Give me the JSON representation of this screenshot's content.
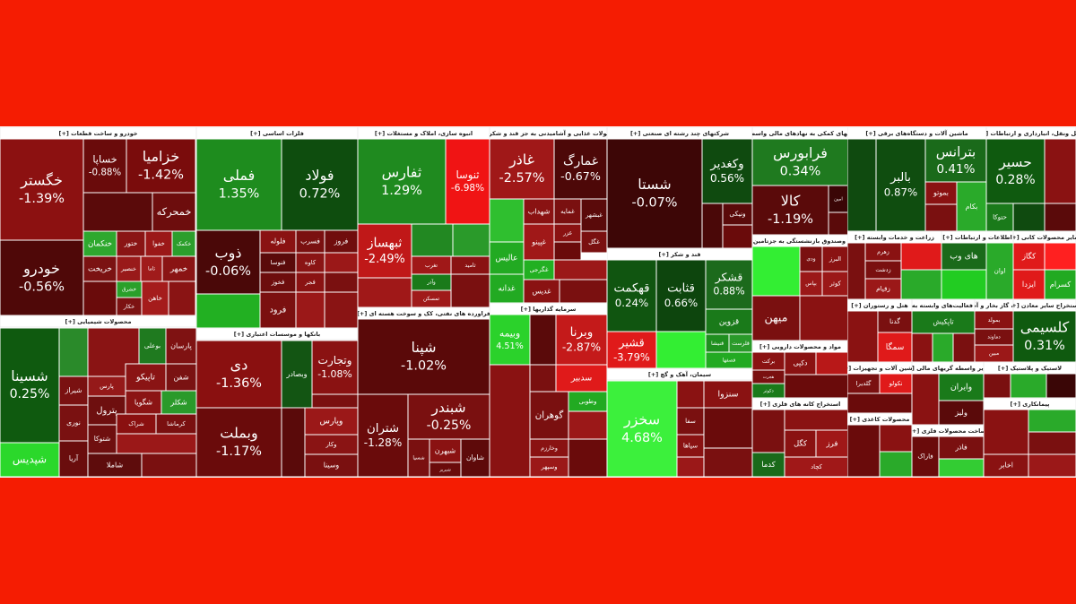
{
  "sectors": [
    {
      "title": "خودرو و ساخت قطعات [+]",
      "tiles": [
        {
          "name": "خگستر",
          "change": "-1.39%",
          "color": "#8c1111"
        },
        {
          "name": "خودرو",
          "change": "-0.56%",
          "color": "#4f0808"
        },
        {
          "name": "خساپا",
          "change": "-0.88%",
          "color": "#6a0b0b"
        },
        {
          "name": "خزامیا",
          "change": "-1.42%",
          "color": "#7a0c0c"
        },
        {
          "color": "#5a0a0a"
        },
        {
          "name": "خمحرکه",
          "color": "#6d0d0d"
        },
        {
          "name": "خنکمان",
          "color": "#2ea82e"
        },
        {
          "name": "ختور",
          "color": "#8a1515"
        },
        {
          "name": "خفوا",
          "color": "#9b1818"
        },
        {
          "name": "خکمک",
          "color": "#2c9e2c"
        },
        {
          "name": "خریخت",
          "color": "#7b1212"
        },
        {
          "name": "خنصیر",
          "color": "#991a1a"
        },
        {
          "name": "تاما",
          "color": "#a01b1b"
        },
        {
          "name": "خمهر",
          "color": "#8a1414"
        },
        {
          "color": "#6a0b0b"
        },
        {
          "name": "خشرق",
          "color": "#2aa02a"
        },
        {
          "name": "خکار",
          "color": "#7c1212"
        },
        {
          "name": "خاهن",
          "color": "#a51c1c"
        },
        {
          "color": "#8a1414"
        }
      ]
    },
    {
      "title": "محصولات شیمیایی [+]",
      "tiles": [
        {
          "name": "شسینا",
          "change": "0.25%",
          "color": "#0f5a0f"
        },
        {
          "name": "شپدیس",
          "color": "#2bd82b"
        },
        {
          "color": "#2a8a2a"
        },
        {
          "name": "شیراز",
          "color": "#7a1111"
        },
        {
          "name": "نوری",
          "color": "#7a1111"
        },
        {
          "name": "آریا",
          "color": "#6a0d0d"
        },
        {
          "color": "#8a1414"
        },
        {
          "name": "بوعلی",
          "color": "#1f7a1f"
        },
        {
          "name": "پارسان",
          "color": "#7f1212"
        },
        {
          "name": "پارس",
          "color": "#951919"
        },
        {
          "name": "تاپیکو",
          "color": "#8a1414"
        },
        {
          "name": "شفن",
          "color": "#7a1212"
        },
        {
          "name": "پترول",
          "color": "#6e0f0f"
        },
        {
          "name": "شگویا",
          "color": "#8b1414"
        },
        {
          "name": "شکلر",
          "color": "#2a9a2a"
        },
        {
          "name": "شتوکا",
          "color": "#6f0f0f"
        },
        {
          "name": "شراک",
          "color": "#8a1010"
        },
        {
          "name": "کرماشا",
          "color": "#7a1010"
        },
        {
          "color": "#9b1818"
        },
        {
          "name": "شاملا",
          "color": "#5e0c0c"
        },
        {
          "color": "#7a1010"
        }
      ]
    },
    {
      "title": "فلزات اساسی [+]",
      "tiles": [
        {
          "name": "فملی",
          "change": "1.35%",
          "color": "#1e8c1e"
        },
        {
          "name": "فولاد",
          "change": "0.72%",
          "color": "#0e4d0e"
        },
        {
          "name": "ذوب",
          "change": "-0.06%",
          "color": "#4a0808"
        },
        {
          "color": "#22b022"
        },
        {
          "name": "فلوله",
          "color": "#8a1212"
        },
        {
          "name": "فسرب",
          "color": "#7a1010"
        },
        {
          "name": "فروز",
          "color": "#700d0d"
        },
        {
          "name": "فنوسا",
          "color": "#5a0a0a"
        },
        {
          "name": "کاوه",
          "color": "#8a1414"
        },
        {
          "color": "#9b1818"
        },
        {
          "name": "فخوز",
          "color": "#6d0d0d"
        },
        {
          "name": "فجر",
          "color": "#8a1212"
        },
        {
          "color": "#7a1010"
        },
        {
          "name": "فرود",
          "color": "#7b1010"
        },
        {
          "color": "#9b1818"
        },
        {
          "color": "#8a1414"
        }
      ]
    },
    {
      "title": "بانکها و موسسات اعتباری [+]",
      "tiles": [
        {
          "name": "دی",
          "change": "-1.36%",
          "color": "#8a1010"
        },
        {
          "name": "وبملت",
          "change": "-1.17%",
          "color": "#6a0b0b"
        },
        {
          "name": "وبصادر",
          "color": "#135513"
        },
        {
          "name": "وتجارت",
          "change": "-1.08%",
          "color": "#8a1212"
        },
        {
          "color": "#7a1010"
        },
        {
          "color": "#5a0a0a"
        },
        {
          "name": "وپارس",
          "color": "#9b1818"
        },
        {
          "name": "وکار",
          "color": "#8a1414"
        },
        {
          "name": "وسینا",
          "color": "#7a1010"
        }
      ]
    },
    {
      "title": "انبوه سازی، املاک و مستغلات [+]",
      "tiles": [
        {
          "name": "ثفارس",
          "change": "1.29%",
          "color": "#1f8a1f"
        },
        {
          "name": "ثنوسا",
          "change": "-6.98%",
          "color": "#f01414"
        },
        {
          "name": "ثبهساز",
          "change": "-2.49%",
          "color": "#c01818"
        },
        {
          "color": "#a01818"
        },
        {
          "color": "#228822"
        },
        {
          "color": "#2a9a2a"
        },
        {
          "name": "تغرب",
          "color": "#a01818"
        },
        {
          "name": "ثامید",
          "color": "#8a1212"
        },
        {
          "name": "وآذر",
          "color": "#1a7a1a"
        },
        {
          "name": "تمسکن",
          "color": "#a01a1a"
        },
        {
          "color": "#7a1010"
        }
      ]
    },
    {
      "title": "فراورده های نفتی، کک و سوخت هسته ای [+]",
      "tiles": [
        {
          "name": "شپنا",
          "change": "-1.02%",
          "color": "#5a0909"
        },
        {
          "name": "شتران",
          "change": "-1.28%",
          "color": "#6a0b0b"
        },
        {
          "name": "شبندر",
          "change": "-0.25%",
          "color": "#7a1010"
        },
        {
          "name": "شسپا",
          "color": "#7a1010"
        },
        {
          "name": "شبهرن",
          "color": "#8a1212"
        },
        {
          "name": "شبریز",
          "color": "#6a0b0b"
        },
        {
          "name": "شاوان",
          "color": "#5e0a0a"
        }
      ]
    },
    {
      "title": "محصولات غذایی و آشامیدنی به جز قند و شکر [+]",
      "tiles": [
        {
          "name": "غاذر",
          "change": "-2.57%",
          "color": "#a01818"
        },
        {
          "name": "غمارگ",
          "change": "-0.67%",
          "color": "#4d0808"
        },
        {
          "color": "#2fbf2f"
        },
        {
          "name": "شهداب",
          "color": "#8a1212"
        },
        {
          "name": "غمایه",
          "color": "#7a1010"
        },
        {
          "name": "غبشهر",
          "color": "#5a0a0a"
        },
        {
          "name": "غپینو",
          "color": "#a01818"
        },
        {
          "name": "غزر",
          "color": "#8a1212"
        },
        {
          "name": "غگل",
          "color": "#7a1010"
        },
        {
          "name": "عالیس",
          "color": "#22aa22"
        },
        {
          "color": "#6a0b0b"
        },
        {
          "name": "غگرجی",
          "color": "#22b022"
        },
        {
          "color": "#9b1818"
        },
        {
          "name": "غدانه",
          "color": "#22aa22"
        },
        {
          "name": "غدیس",
          "color": "#8a1212"
        },
        {
          "color": "#7a1010"
        }
      ]
    },
    {
      "title": "سرمایه گذاریها [+]",
      "tiles": [
        {
          "name": "وبیمه",
          "change": "4.51%",
          "color": "#2bd22b"
        },
        {
          "color": "#5a0a0a"
        },
        {
          "name": "وبرنا",
          "change": "-2.87%",
          "color": "#c41a1a"
        },
        {
          "color": "#8a1212"
        },
        {
          "color": "#7a1010"
        },
        {
          "name": "سدبیر",
          "color": "#e01a1a"
        },
        {
          "name": "گوهران",
          "color": "#7a1010"
        },
        {
          "name": "وطوبی",
          "color": "#22aa22"
        },
        {
          "color": "#9b1818"
        },
        {
          "name": "وخارزم",
          "color": "#8a1212"
        },
        {
          "name": "وسپهر",
          "color": "#9b1818"
        },
        {
          "color": "#6a0b0b"
        }
      ]
    },
    {
      "title": "شرکتهای چند رشته ای صنعتی [+]",
      "tiles": [
        {
          "name": "شستا",
          "change": "-0.07%",
          "color": "#3d0606"
        },
        {
          "name": "وکغدیر",
          "change": "0.56%",
          "color": "#0f4a0f"
        },
        {
          "color": "#4a0808"
        },
        {
          "name": "ونیکی",
          "color": "#5a0a0a"
        },
        {
          "color": "#6a0b0b"
        }
      ]
    },
    {
      "title": "قند و شکر [+]",
      "tiles": [
        {
          "name": "قهکمت",
          "change": "0.24%",
          "color": "#105510"
        },
        {
          "name": "قثابت",
          "change": "0.66%",
          "color": "#0d450d"
        },
        {
          "name": "قشکر",
          "change": "0.88%",
          "color": "#1c6a1c"
        },
        {
          "name": "قزوین",
          "color": "#1a7a1a"
        },
        {
          "name": "قشیر",
          "change": "-3.79%",
          "color": "#e01a1a"
        },
        {
          "color": "#33ee33"
        },
        {
          "name": "قنیشا",
          "color": "#1f8f1f"
        },
        {
          "name": "قلرست",
          "color": "#2a9a2a"
        },
        {
          "name": "قصفها",
          "color": "#22aa22"
        }
      ]
    },
    {
      "title": "سیمان، آهک و گچ [+]",
      "tiles": [
        {
          "name": "سخزر",
          "change": "4.68%",
          "color": "#3cf03c"
        },
        {
          "color": "#8a1212"
        },
        {
          "name": "سنزوا",
          "color": "#8a1212"
        },
        {
          "name": "سفا",
          "color": "#7a1010"
        },
        {
          "color": "#6a0b0b"
        },
        {
          "name": "سپاها",
          "color": "#8a1212"
        },
        {
          "color": "#9b1818"
        },
        {
          "color": "#7a1010"
        }
      ]
    },
    {
      "title": "فعالیتهای کمکی به نهادهای مالی واسط [+]",
      "tiles": [
        {
          "name": "فرابورس",
          "change": "0.34%",
          "color": "#1f7a1f"
        },
        {
          "name": "کالا",
          "change": "-1.19%",
          "color": "#5a0a0a"
        },
        {
          "name": "امین",
          "color": "#3a0606"
        },
        {
          "color": "#5a0a0a"
        }
      ]
    },
    {
      "title": "بیمه وصندوق بازنشستگی به جزتامین [+]",
      "tiles": [
        {
          "color": "#33ee33"
        },
        {
          "name": "ودی",
          "color": "#7a1010"
        },
        {
          "name": "البرز",
          "color": "#8a1212"
        },
        {
          "name": "بپاس",
          "color": "#9b1818"
        },
        {
          "name": "کوثر",
          "color": "#9b1818"
        },
        {
          "name": "میهن",
          "color": "#7a1010"
        },
        {
          "color": "#8a1212"
        }
      ]
    },
    {
      "title": "مواد و محصولات دارویی [+]",
      "tiles": [
        {
          "name": "برکت",
          "color": "#8a1212"
        },
        {
          "name": "هجرت",
          "color": "#7a1010"
        },
        {
          "name": "دکوثر",
          "color": "#1a7a1a"
        },
        {
          "name": "دکپی",
          "color": "#8a1212"
        },
        {
          "color": "#b81818"
        },
        {
          "color": "#6a0b0b"
        }
      ]
    },
    {
      "title": "استخراج کانه های فلزی [+]",
      "tiles": [
        {
          "color": "#7a1010"
        },
        {
          "color": "#8a1212"
        },
        {
          "name": "کگل",
          "color": "#8a1212"
        },
        {
          "name": "فرز",
          "color": "#a01818"
        },
        {
          "name": "کدما",
          "color": "#1a6a1a"
        },
        {
          "name": "کچاد",
          "color": "#a01818"
        }
      ]
    },
    {
      "title": "ماشین آلات و دستگاه‌های برقی [+]",
      "tiles": [
        {
          "color": "#0f4a0f"
        },
        {
          "name": "بالبر",
          "change": "0.87%",
          "color": "#0f4d0f"
        },
        {
          "name": "بترانس",
          "change": "0.41%",
          "color": "#1a6a1a"
        },
        {
          "name": "بموتو",
          "color": "#8a1212"
        },
        {
          "color": "#7a1010"
        },
        {
          "name": "بکام",
          "color": "#2aaa2a"
        }
      ]
    },
    {
      "title": "زراعت و خدمات وابسته [+]",
      "tiles": [
        {
          "color": "#7a1010"
        },
        {
          "name": "زهرم",
          "color": "#8a1212"
        },
        {
          "name": "زدشت",
          "color": "#7a1010"
        },
        {
          "name": "زقیام",
          "color": "#9b1818"
        },
        {
          "color": "#e01a1a"
        },
        {
          "color": "#2aaa2a"
        }
      ]
    },
    {
      "title": "اطلاعات و ارتباطات [+]",
      "tiles": [
        {
          "name": "های وب",
          "color": "#1a6a1a"
        },
        {
          "color": "#22cc22"
        },
        {
          "name": "اوان",
          "color": "#2aaa2a"
        }
      ]
    },
    {
      "title": "سایر محصولات کانی [+]",
      "tiles": [
        {
          "name": "کگاز",
          "color": "#e01a1a"
        },
        {
          "color": "#ff2020"
        },
        {
          "name": "ایزدا",
          "color": "#e01a1a"
        },
        {
          "name": "کسرام",
          "color": "#22aa22"
        }
      ]
    },
    {
      "title": "هتل و رستوران [+]",
      "tiles": [
        {
          "color": "#8a1212"
        },
        {
          "name": "گدنا",
          "color": "#7a1010"
        },
        {
          "name": "سمگا",
          "color": "#e01a1a"
        }
      ]
    },
    {
      "title": "رایانه و فعالیت‌های وابسته به آن [+]",
      "tiles": [
        {
          "name": "تاپکیش",
          "color": "#1a7a1a"
        },
        {
          "color": "#8a1212"
        },
        {
          "color": "#2aaa2a"
        },
        {
          "color": "#7a1010"
        }
      ]
    },
    {
      "title": "عرضه برق، گاز بخار و آب گرم [+]",
      "tiles": [
        {
          "name": "بمولد",
          "color": "#8a1212"
        },
        {
          "name": "دماوند",
          "color": "#7a1010"
        },
        {
          "name": "مبین",
          "color": "#9b1818"
        }
      ]
    },
    {
      "title": "استخراج سایر معادن [+]",
      "tiles": [
        {
          "name": "کلسیمی",
          "change": "0.31%",
          "color": "#0f5a0f"
        }
      ]
    },
    {
      "title": "ماشین آلات و تجهیزات [+]",
      "tiles": [
        {
          "name": "گلدیرا",
          "color": "#7a1010"
        },
        {
          "name": "نکولو",
          "color": "#e01a1a"
        },
        {
          "color": "#6a0b0b"
        }
      ]
    },
    {
      "title": "سایر واسطه گریهای مالی [+]",
      "tiles": [
        {
          "color": "#8a1212"
        },
        {
          "name": "وایران",
          "color": "#1a7a1a"
        },
        {
          "name": "ولیز",
          "color": "#5a0a0a"
        }
      ]
    },
    {
      "title": "لاستیک و پلاستیک [+]",
      "tiles": [
        {
          "color": "#7a1010"
        },
        {
          "color": "#2aaa2a"
        },
        {
          "color": "#3a0606"
        }
      ]
    },
    {
      "title": "پیمانکاری [+]",
      "tiles": [
        {
          "color": "#8a1212"
        },
        {
          "color": "#2aaa2a"
        },
        {
          "color": "#7a1010"
        },
        {
          "name": "اخابر",
          "color": "#8a1212"
        },
        {
          "color": "#9b1818"
        }
      ]
    },
    {
      "title": "محصولات کاغذی [+]",
      "tiles": [
        {
          "color": "#6a0b0b"
        },
        {
          "color": "#8a1212"
        },
        {
          "color": "#2aaa2a"
        }
      ]
    },
    {
      "title": "ساخت محصولات فلزی [+]",
      "tiles": [
        {
          "name": "فاراک",
          "color": "#6a0b0b"
        },
        {
          "name": "فاذر",
          "color": "#7a1010"
        },
        {
          "color": "#33cc33"
        }
      ]
    },
    {
      "title": "حمل ونقل، انبارداری و ارتباطات [+]",
      "tiles": [
        {
          "name": "حسیر",
          "change": "0.28%",
          "color": "#0f5a0f"
        },
        {
          "color": "#8a1212"
        },
        {
          "name": "حتوکا",
          "color": "#1a7a1a"
        },
        {
          "color": "#0f4a0f"
        },
        {
          "color": "#5a0a0a"
        }
      ]
    }
  ]
}
